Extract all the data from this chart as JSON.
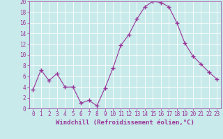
{
  "x": [
    0,
    1,
    2,
    3,
    4,
    5,
    6,
    7,
    8,
    9,
    10,
    11,
    12,
    13,
    14,
    15,
    16,
    17,
    18,
    19,
    20,
    21,
    22,
    23
  ],
  "y": [
    3.5,
    7.2,
    5.2,
    6.5,
    4.0,
    4.0,
    1.0,
    1.5,
    0.5,
    3.8,
    7.5,
    11.8,
    13.8,
    16.7,
    19.0,
    20.0,
    19.8,
    19.0,
    16.0,
    12.2,
    9.8,
    8.3,
    6.8,
    5.5
  ],
  "line_color": "#993399",
  "marker": "+",
  "marker_size": 4,
  "bg_color": "#c8eaea",
  "grid_color": "#ffffff",
  "xlabel": "Windchill (Refroidissement éolien,°C)",
  "xlabel_color": "#993399",
  "tick_color": "#993399",
  "xlabel_fontsize": 6.5,
  "xtick_fontsize": 5.5,
  "ytick_fontsize": 5.5,
  "ylim": [
    0,
    20
  ],
  "xlim": [
    -0.5,
    23.5
  ],
  "yticks": [
    0,
    2,
    4,
    6,
    8,
    10,
    12,
    14,
    16,
    18,
    20
  ],
  "xticks": [
    0,
    1,
    2,
    3,
    4,
    5,
    6,
    7,
    8,
    9,
    10,
    11,
    12,
    13,
    14,
    15,
    16,
    17,
    18,
    19,
    20,
    21,
    22,
    23
  ]
}
